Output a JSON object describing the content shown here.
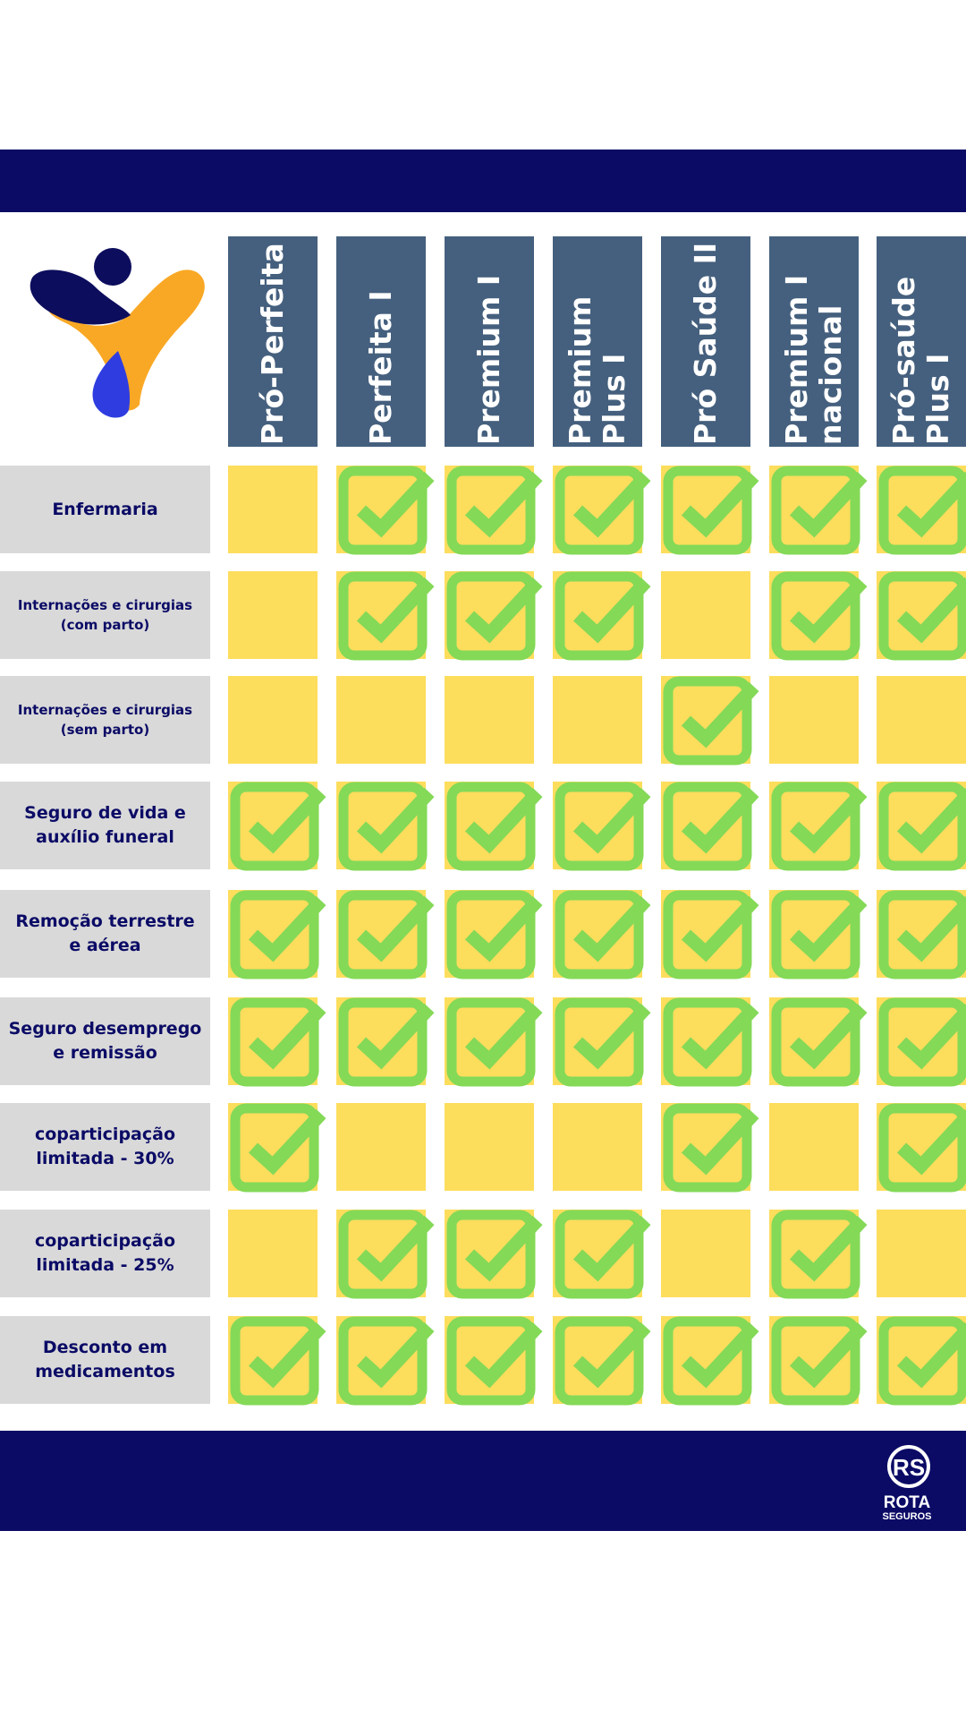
{
  "plans": [
    {
      "label": "Pró-Perfeita"
    },
    {
      "label": "Perfeita I"
    },
    {
      "label": "Premium I"
    },
    {
      "label": "Premium\nPlus I"
    },
    {
      "label": "Pró Saúde II"
    },
    {
      "label": "Premium I\nnacional"
    },
    {
      "label": "Pró-saúde\nPlus I"
    }
  ],
  "features": [
    {
      "label": "Enfermaria",
      "size": "normal",
      "included": [
        false,
        true,
        true,
        true,
        true,
        true,
        true
      ]
    },
    {
      "label": "Internações e cirurgias\n(com parto)",
      "size": "small",
      "included": [
        false,
        true,
        true,
        true,
        false,
        true,
        true
      ]
    },
    {
      "label": "Internações e cirurgias\n(sem parto)",
      "size": "small",
      "included": [
        false,
        false,
        false,
        false,
        true,
        false,
        false
      ]
    },
    {
      "label": "Seguro de vida e\nauxílio funeral",
      "size": "normal",
      "included": [
        true,
        true,
        true,
        true,
        true,
        true,
        true
      ]
    },
    {
      "label": "Remoção terrestre\ne aérea",
      "size": "normal",
      "included": [
        true,
        true,
        true,
        true,
        true,
        true,
        true
      ]
    },
    {
      "label": "Seguro desemprego\ne remissão",
      "size": "normal",
      "included": [
        true,
        true,
        true,
        true,
        true,
        true,
        true
      ]
    },
    {
      "label": "coparticipação\nlimitada - 30%",
      "size": "normal",
      "included": [
        true,
        false,
        false,
        false,
        true,
        false,
        true
      ]
    },
    {
      "label": "coparticipação\nlimitada - 25%",
      "size": "normal",
      "included": [
        false,
        true,
        true,
        true,
        false,
        true,
        false
      ]
    },
    {
      "label": "Desconto em\nmedicamentos",
      "size": "normal",
      "included": [
        true,
        true,
        true,
        true,
        true,
        true,
        true
      ]
    }
  ],
  "brand": {
    "line1": "ROTA",
    "line2": "SEGUROS",
    "monogram": "RS"
  },
  "colors": {
    "navy": "#0b0b66",
    "header_blue": "#45607e",
    "cell_yellow": "#fddd5c",
    "check_green": "#84d957",
    "label_gray": "#d9d9d9",
    "logo_orange": "#f9a825",
    "logo_blue": "#2f3de0"
  },
  "icons": {
    "check": "check-icon",
    "logo": "company-logo",
    "brand": "rota-seguros-logo"
  }
}
